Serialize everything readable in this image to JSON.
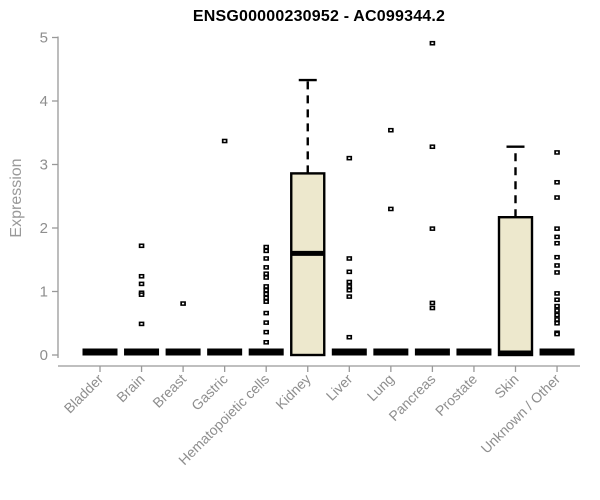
{
  "title": "ENSG00000230952 - AC099344.2",
  "colors": {
    "box_fill": "#EDE8CD",
    "box_stroke": "#000000",
    "median_color": "#000000",
    "outlier_color": "#000000",
    "axis_color": "#999999",
    "tick_label_color": "#8E8E8E",
    "title_color": "#000000",
    "background": "#FFFFFF"
  },
  "chart_data": {
    "type": "boxplot",
    "title": "ENSG00000230952 - AC099344.2",
    "xlabel": "",
    "ylabel": "Expression",
    "ylim": [
      0,
      5
    ],
    "yticks": [
      0,
      1,
      2,
      3,
      4,
      5
    ],
    "grid": false,
    "legend": false,
    "categories": [
      "Bladder",
      "Brain",
      "Breast",
      "Gastric",
      "Hematopoietic cells",
      "Kidney",
      "Liver",
      "Lung",
      "Pancreas",
      "Prostate",
      "Skin",
      "Unknown / Other"
    ],
    "boxes": [
      {
        "category": "Bladder",
        "q1": 0,
        "median": 0,
        "q3": 0,
        "whisker_low": 0,
        "whisker_high": 0,
        "outliers": []
      },
      {
        "category": "Brain",
        "q1": 0,
        "median": 0,
        "q3": 0,
        "whisker_low": 0,
        "whisker_high": 0,
        "outliers": [
          1.72,
          1.24,
          1.12,
          0.98,
          0.95,
          0.49
        ]
      },
      {
        "category": "Breast",
        "q1": 0,
        "median": 0,
        "q3": 0,
        "whisker_low": 0,
        "whisker_high": 0,
        "outliers": [
          0.81
        ]
      },
      {
        "category": "Gastric",
        "q1": 0,
        "median": 0,
        "q3": 0,
        "whisker_low": 0,
        "whisker_high": 0,
        "outliers": [
          3.37
        ]
      },
      {
        "category": "Hematopoietic cells",
        "q1": 0,
        "median": 0,
        "q3": 0,
        "whisker_low": 0,
        "whisker_high": 0,
        "outliers": [
          1.7,
          1.64,
          1.52,
          1.38,
          1.28,
          1.22,
          1.08,
          1.02,
          0.96,
          0.9,
          0.84,
          0.66,
          0.51,
          0.36,
          0.2
        ]
      },
      {
        "category": "Kidney",
        "q1": 0,
        "median": 1.6,
        "q3": 2.86,
        "whisker_low": 0,
        "whisker_high": 4.33,
        "outliers": []
      },
      {
        "category": "Liver",
        "q1": 0,
        "median": 0,
        "q3": 0,
        "whisker_low": 0,
        "whisker_high": 0,
        "outliers": [
          3.1,
          1.52,
          1.31,
          1.15,
          1.08,
          1.02,
          0.92,
          0.28
        ]
      },
      {
        "category": "Lung",
        "q1": 0,
        "median": 0,
        "q3": 0,
        "whisker_low": 0,
        "whisker_high": 0,
        "outliers": [
          3.54,
          2.3
        ]
      },
      {
        "category": "Pancreas",
        "q1": 0,
        "median": 0,
        "q3": 0,
        "whisker_low": 0,
        "whisker_high": 0,
        "outliers": [
          4.91,
          3.28,
          1.99,
          0.82,
          0.74
        ]
      },
      {
        "category": "Prostate",
        "q1": 0,
        "median": 0,
        "q3": 0,
        "whisker_low": 0,
        "whisker_high": 0,
        "outliers": []
      },
      {
        "category": "Skin",
        "q1": 0,
        "median": 0,
        "q3": 2.17,
        "whisker_low": 0,
        "whisker_high": 3.28,
        "outliers": []
      },
      {
        "category": "Unknown / Other",
        "q1": 0,
        "median": 0,
        "q3": 0,
        "whisker_low": 0,
        "whisker_high": 0,
        "outliers": [
          3.19,
          2.72,
          2.48,
          1.99,
          1.86,
          1.76,
          1.54,
          1.41,
          1.3,
          0.97,
          0.87,
          0.77,
          0.7,
          0.63,
          0.56,
          0.5,
          0.35,
          0.33
        ]
      }
    ]
  }
}
